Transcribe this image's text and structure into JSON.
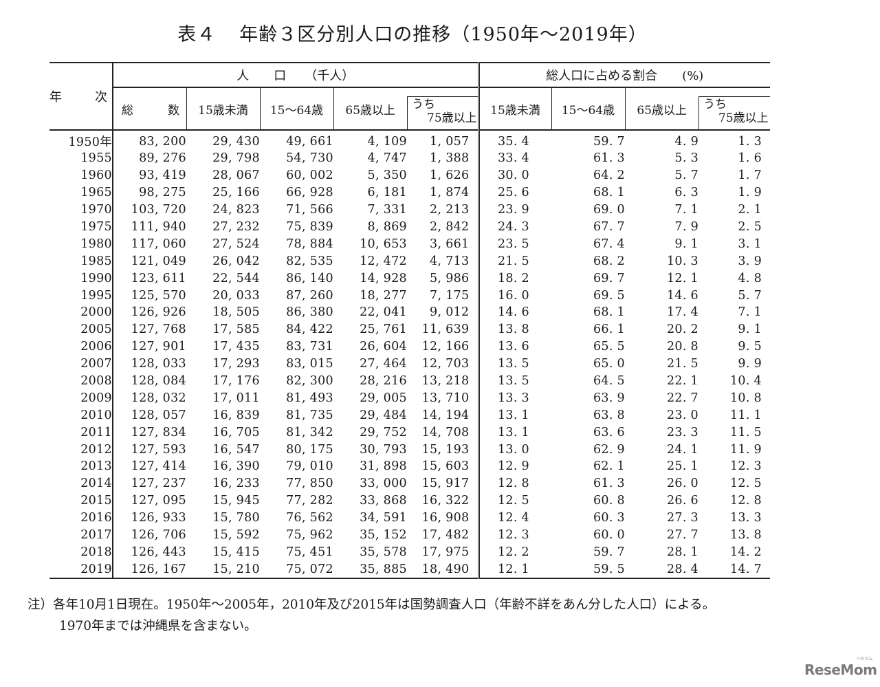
{
  "title": {
    "number": "表４",
    "text": "年齢３区分別人口の推移（1950年～2019年）"
  },
  "table": {
    "year_header": {
      "part1": "年",
      "part2": "次"
    },
    "population_group": "人　　口　　（千人）",
    "percentage_group": "総人口に占める割合　　(%)",
    "population_columns": {
      "total_part1": "総",
      "total_part2": "数",
      "under15": "15歳未満",
      "age15_64": "15～64歳",
      "age65_over": "65歳以上",
      "age75_over_l1": "うち",
      "age75_over_l2": "75歳以上"
    },
    "percentage_columns": {
      "under15": "15歳未満",
      "age15_64": "15～64歳",
      "age65_over": "65歳以上",
      "age75_over_l1": "うち",
      "age75_over_l2": "75歳以上"
    },
    "rows": [
      [
        "1950年",
        "83, 200",
        "29, 430",
        "49, 661",
        "4, 109",
        "1, 057",
        "35. 4",
        "59. 7",
        "4. 9",
        "1. 3"
      ],
      [
        "1955",
        "89, 276",
        "29, 798",
        "54, 730",
        "4, 747",
        "1, 388",
        "33. 4",
        "61. 3",
        "5. 3",
        "1. 6"
      ],
      [
        "1960",
        "93, 419",
        "28, 067",
        "60, 002",
        "5, 350",
        "1, 626",
        "30. 0",
        "64. 2",
        "5. 7",
        "1. 7"
      ],
      [
        "1965",
        "98, 275",
        "25, 166",
        "66, 928",
        "6, 181",
        "1, 874",
        "25. 6",
        "68. 1",
        "6. 3",
        "1. 9"
      ],
      [
        "1970",
        "103, 720",
        "24, 823",
        "71, 566",
        "7, 331",
        "2, 213",
        "23. 9",
        "69. 0",
        "7. 1",
        "2. 1"
      ],
      [
        "1975",
        "111, 940",
        "27, 232",
        "75, 839",
        "8, 869",
        "2, 842",
        "24. 3",
        "67. 7",
        "7. 9",
        "2. 5"
      ],
      [
        "1980",
        "117, 060",
        "27, 524",
        "78, 884",
        "10, 653",
        "3, 661",
        "23. 5",
        "67. 4",
        "9. 1",
        "3. 1"
      ],
      [
        "1985",
        "121, 049",
        "26, 042",
        "82, 535",
        "12, 472",
        "4, 713",
        "21. 5",
        "68. 2",
        "10. 3",
        "3. 9"
      ],
      [
        "1990",
        "123, 611",
        "22, 544",
        "86, 140",
        "14, 928",
        "5, 986",
        "18. 2",
        "69. 7",
        "12. 1",
        "4. 8"
      ],
      [
        "1995",
        "125, 570",
        "20, 033",
        "87, 260",
        "18, 277",
        "7, 175",
        "16. 0",
        "69. 5",
        "14. 6",
        "5. 7"
      ],
      [
        "2000",
        "126, 926",
        "18, 505",
        "86, 380",
        "22, 041",
        "9, 012",
        "14. 6",
        "68. 1",
        "17. 4",
        "7. 1"
      ],
      [
        "2005",
        "127, 768",
        "17, 585",
        "84, 422",
        "25, 761",
        "11, 639",
        "13. 8",
        "66. 1",
        "20. 2",
        "9. 1"
      ],
      [
        "2006",
        "127, 901",
        "17, 435",
        "83, 731",
        "26, 604",
        "12, 166",
        "13. 6",
        "65. 5",
        "20. 8",
        "9. 5"
      ],
      [
        "2007",
        "128, 033",
        "17, 293",
        "83, 015",
        "27, 464",
        "12, 703",
        "13. 5",
        "65. 0",
        "21. 5",
        "9. 9"
      ],
      [
        "2008",
        "128, 084",
        "17, 176",
        "82, 300",
        "28, 216",
        "13, 218",
        "13. 5",
        "64. 5",
        "22. 1",
        "10. 4"
      ],
      [
        "2009",
        "128, 032",
        "17, 011",
        "81, 493",
        "29, 005",
        "13, 710",
        "13. 3",
        "63. 9",
        "22. 7",
        "10. 8"
      ],
      [
        "2010",
        "128, 057",
        "16, 839",
        "81, 735",
        "29, 484",
        "14, 194",
        "13. 1",
        "63. 8",
        "23. 0",
        "11. 1"
      ],
      [
        "2011",
        "127, 834",
        "16, 705",
        "81, 342",
        "29, 752",
        "14, 708",
        "13. 1",
        "63. 6",
        "23. 3",
        "11. 5"
      ],
      [
        "2012",
        "127, 593",
        "16, 547",
        "80, 175",
        "30, 793",
        "15, 193",
        "13. 0",
        "62. 9",
        "24. 1",
        "11. 9"
      ],
      [
        "2013",
        "127, 414",
        "16, 390",
        "79, 010",
        "31, 898",
        "15, 603",
        "12. 9",
        "62. 1",
        "25. 1",
        "12. 3"
      ],
      [
        "2014",
        "127, 237",
        "16, 233",
        "77, 850",
        "33, 000",
        "15, 917",
        "12. 8",
        "61. 3",
        "26. 0",
        "12. 5"
      ],
      [
        "2015",
        "127, 095",
        "15, 945",
        "77, 282",
        "33, 868",
        "16, 322",
        "12. 5",
        "60. 8",
        "26. 6",
        "12. 8"
      ],
      [
        "2016",
        "126, 933",
        "15, 780",
        "76, 562",
        "34, 591",
        "16, 908",
        "12. 4",
        "60. 3",
        "27. 3",
        "13. 3"
      ],
      [
        "2017",
        "126, 706",
        "15, 592",
        "75, 962",
        "35, 152",
        "17, 482",
        "12. 3",
        "60. 0",
        "27. 7",
        "13. 8"
      ],
      [
        "2018",
        "126, 443",
        "15, 415",
        "75, 451",
        "35, 578",
        "17, 975",
        "12. 2",
        "59. 7",
        "28. 1",
        "14. 2"
      ],
      [
        "2019",
        "126, 167",
        "15, 210",
        "75, 072",
        "35, 885",
        "18, 490",
        "12. 1",
        "59. 5",
        "28. 4",
        "14. 7"
      ]
    ]
  },
  "note": {
    "line1": "注）各年10月1日現在。1950年～2005年，2010年及び2015年は国勢調査人口（年齢不詳をあん分した人口）による。",
    "line2": "1970年までは沖縄県を含まない。"
  },
  "watermark": {
    "logo_text": "ReseMom",
    "logo_ruby": "リセマム"
  }
}
